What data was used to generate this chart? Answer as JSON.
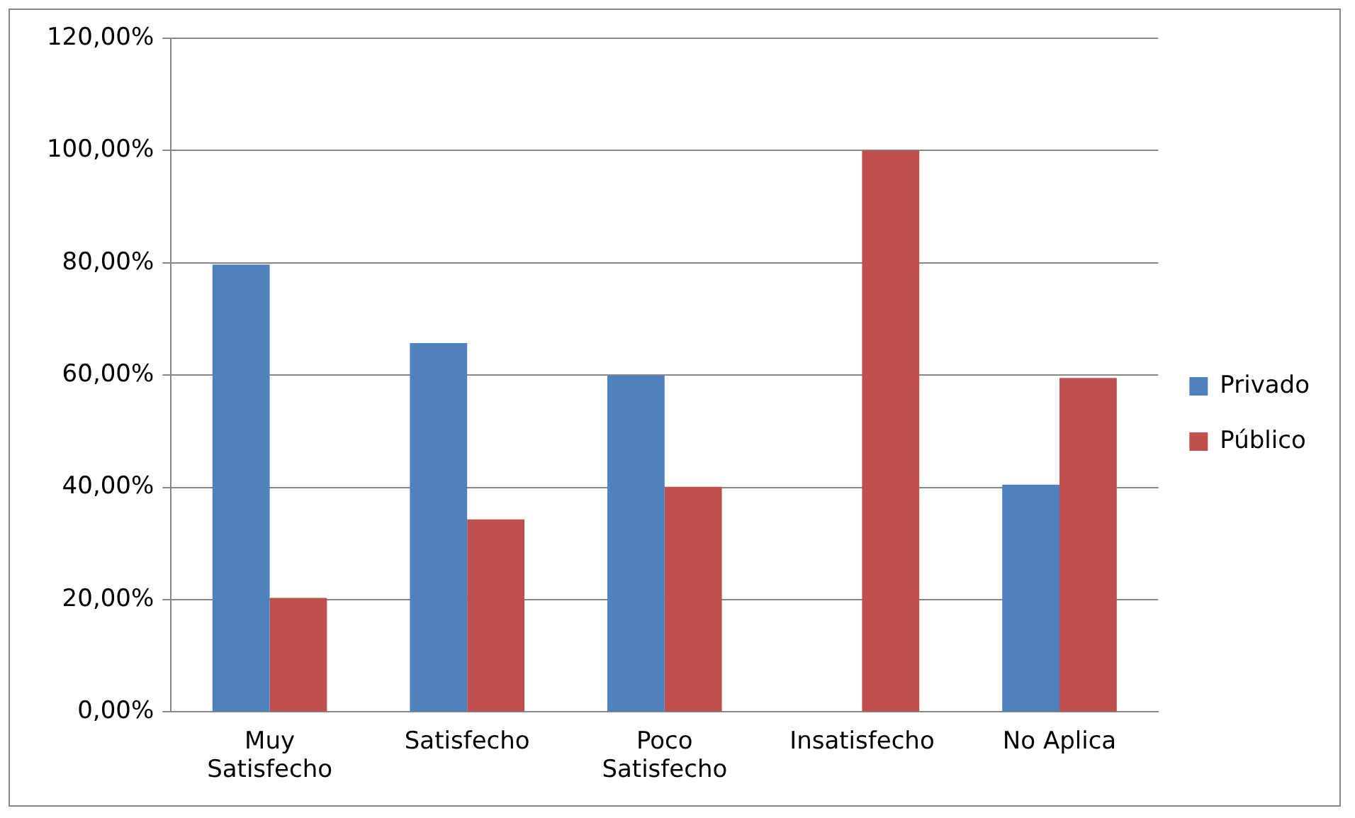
{
  "chart_data": {
    "type": "bar",
    "categories": [
      "Muy Satisfecho",
      "Satisfecho",
      "Poco Satisfecho",
      "Insatisfecho",
      "No Aplica"
    ],
    "series": [
      {
        "name": "Privado",
        "color": "#4f81bd",
        "values": [
          79.7,
          65.7,
          59.9,
          0,
          40.5
        ]
      },
      {
        "name": "Público",
        "color": "#c0504d",
        "values": [
          20.3,
          34.3,
          40.1,
          100,
          59.5
        ]
      }
    ],
    "ylim": [
      0,
      120
    ],
    "yticks": [
      {
        "value": 0,
        "label": "0,00%"
      },
      {
        "value": 20,
        "label": "20,00%"
      },
      {
        "value": 40,
        "label": "40,00%"
      },
      {
        "value": 60,
        "label": "60,00%"
      },
      {
        "value": 80,
        "label": "80,00%"
      },
      {
        "value": 100,
        "label": "100,00%"
      },
      {
        "value": 120,
        "label": "120,00%"
      }
    ],
    "grid": "y",
    "legend": "right"
  }
}
